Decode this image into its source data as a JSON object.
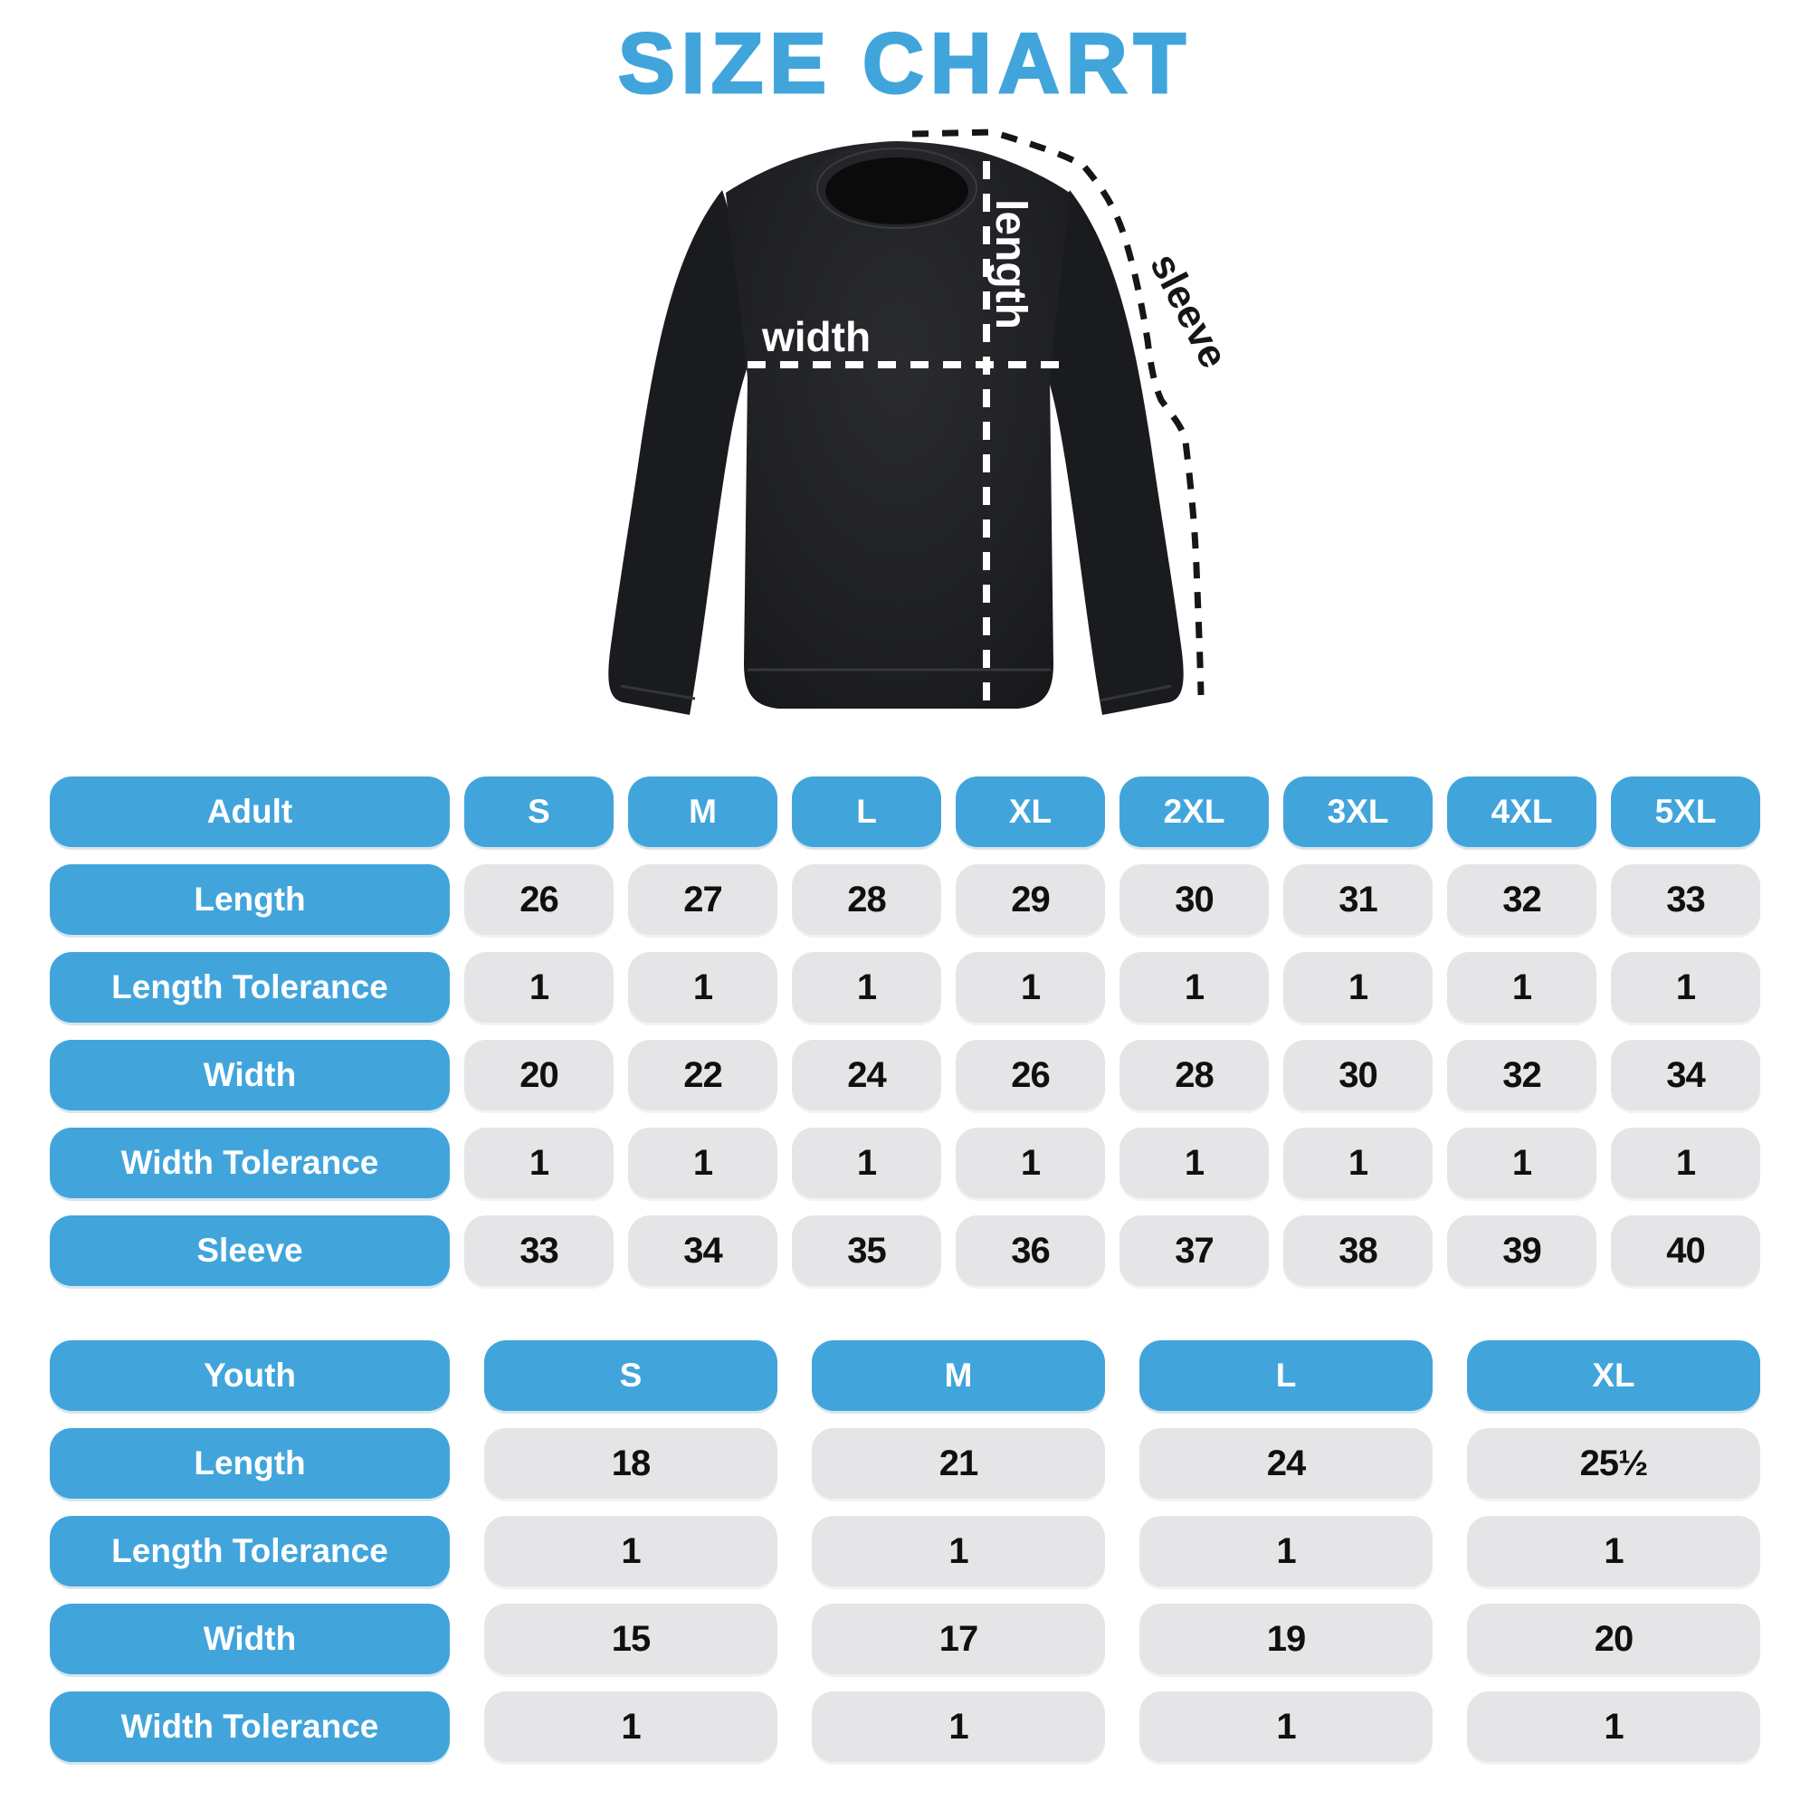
{
  "title": "SIZE CHART",
  "colors": {
    "accent": "#41A5DC",
    "cell_background": "#E5E5E7",
    "shirt": "#1E1F22",
    "measure_line_light": "#FFFFFF",
    "measure_line_dark": "#161616"
  },
  "diagram": {
    "length_label": "length",
    "width_label": "width",
    "sleeve_label": "sleeve"
  },
  "chart_data": [
    {
      "type": "table",
      "name": "adult",
      "header": [
        "Adult",
        "S",
        "M",
        "L",
        "XL",
        "2XL",
        "3XL",
        "4XL",
        "5XL"
      ],
      "rows": [
        {
          "label": "Length",
          "values": [
            "26",
            "27",
            "28",
            "29",
            "30",
            "31",
            "32",
            "33"
          ]
        },
        {
          "label": "Length Tolerance",
          "values": [
            "1",
            "1",
            "1",
            "1",
            "1",
            "1",
            "1",
            "1"
          ]
        },
        {
          "label": "Width",
          "values": [
            "20",
            "22",
            "24",
            "26",
            "28",
            "30",
            "32",
            "34"
          ]
        },
        {
          "label": "Width Tolerance",
          "values": [
            "1",
            "1",
            "1",
            "1",
            "1",
            "1",
            "1",
            "1"
          ]
        },
        {
          "label": "Sleeve",
          "values": [
            "33",
            "34",
            "35",
            "36",
            "37",
            "38",
            "39",
            "40"
          ]
        }
      ]
    },
    {
      "type": "table",
      "name": "youth",
      "header": [
        "Youth",
        "S",
        "M",
        "L",
        "XL"
      ],
      "rows": [
        {
          "label": "Length",
          "values": [
            "18",
            "21",
            "24",
            "25½"
          ]
        },
        {
          "label": "Length Tolerance",
          "values": [
            "1",
            "1",
            "1",
            "1"
          ]
        },
        {
          "label": "Width",
          "values": [
            "15",
            "17",
            "19",
            "20"
          ]
        },
        {
          "label": "Width Tolerance",
          "values": [
            "1",
            "1",
            "1",
            "1"
          ]
        }
      ]
    }
  ]
}
